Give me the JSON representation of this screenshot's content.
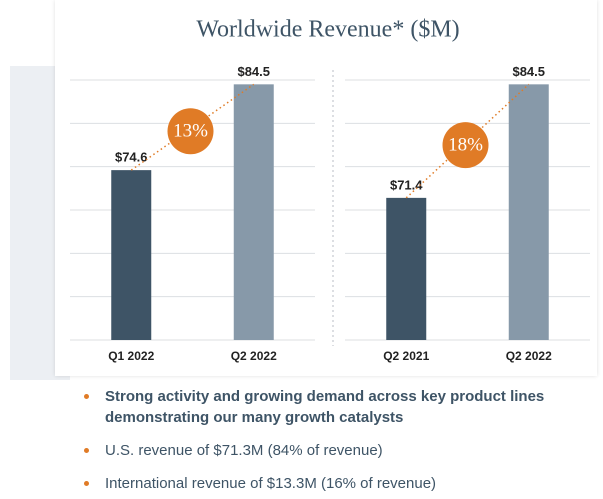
{
  "title": "Worldwide Revenue* ($M)",
  "chart_data": [
    {
      "type": "bar",
      "categories": [
        "Q1 2022",
        "Q2 2022"
      ],
      "values": [
        74.6,
        84.5
      ],
      "value_labels": [
        "$74.6",
        "$84.5"
      ],
      "colors": [
        "#3e5466",
        "#8799a9"
      ],
      "ylim": [
        55,
        85
      ],
      "yticks": [
        55,
        60,
        65,
        70,
        75,
        80,
        85
      ],
      "grid": true,
      "annotation": "13%"
    },
    {
      "type": "bar",
      "categories": [
        "Q2 2021",
        "Q2 2022"
      ],
      "values": [
        71.4,
        84.5
      ],
      "value_labels": [
        "$71.4",
        "$84.5"
      ],
      "colors": [
        "#3e5466",
        "#8799a9"
      ],
      "ylim": [
        55,
        85
      ],
      "yticks": [
        55,
        60,
        65,
        70,
        75,
        80,
        85
      ],
      "grid": true,
      "annotation": "18%"
    }
  ],
  "bullets": [
    {
      "text": "Strong activity and growing demand across key product lines demonstrating our many growth catalysts",
      "bold": true
    },
    {
      "text": "U.S. revenue of $71.3M (84% of revenue)",
      "bold": false
    },
    {
      "text": "International revenue of $13.3M (16% of revenue)",
      "bold": false
    }
  ]
}
